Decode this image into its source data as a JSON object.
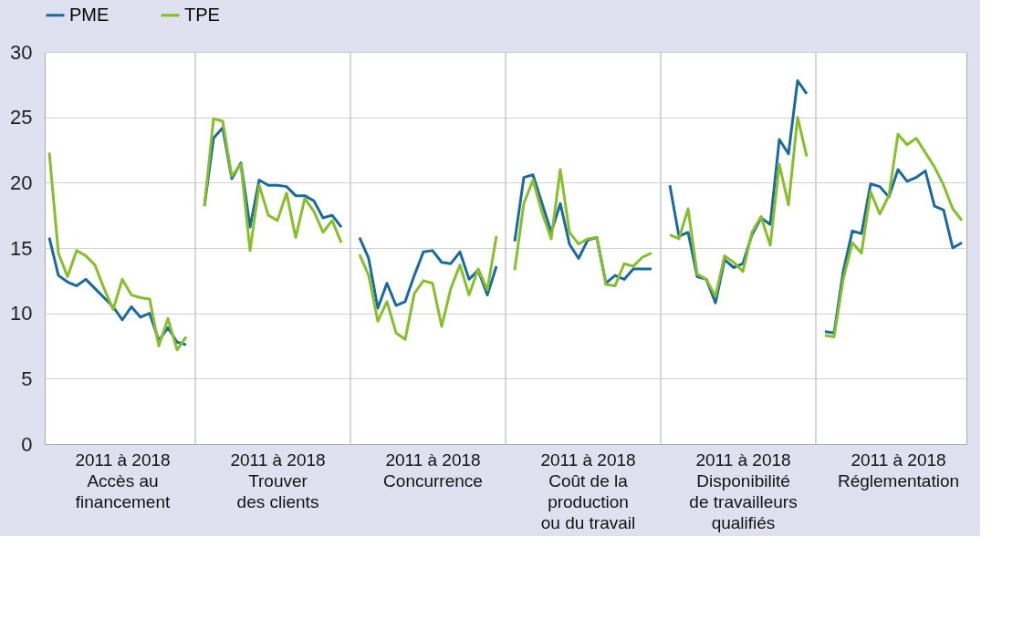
{
  "chart_data": {
    "type": "line",
    "categories": [
      null,
      null,
      null,
      null,
      null,
      null,
      null,
      null,
      "2011 à 2018\nAccès au\nfinancement",
      null,
      null,
      null,
      null,
      null,
      null,
      null,
      null,
      null,
      null,
      null,
      null,
      null,
      null,
      null,
      null,
      "2011 à 2018\nTrouver\ndes clients",
      null,
      null,
      null,
      null,
      null,
      null,
      null,
      null,
      null,
      null,
      null,
      null,
      null,
      null,
      null,
      null,
      "2011 à 2018\nConcurrence",
      null,
      null,
      null,
      null,
      null,
      null,
      null,
      null,
      null,
      null,
      null,
      null,
      null,
      null,
      null,
      null,
      "2011 à 2018\nCoût de la\nproduction\nou du travail",
      null,
      null,
      null,
      null,
      null,
      null,
      null,
      null,
      null,
      null,
      null,
      null,
      null,
      null,
      null,
      null,
      "2011 à 2018\nDisponibilité\nde travailleurs\nqualifiés",
      null,
      null,
      null,
      null,
      null,
      null,
      null,
      null,
      null,
      null,
      null,
      null,
      null,
      null,
      null,
      null,
      "2011 à 2018\nRéglementation",
      null,
      null,
      null,
      null,
      null,
      null,
      null
    ],
    "ylim": [
      0,
      30
    ],
    "yticks": [
      0,
      5,
      10,
      15,
      20,
      25,
      30
    ],
    "grid": true,
    "legend": "top left",
    "series": [
      {
        "name": "PME",
        "color": "#1a6a9e",
        "values": [
          15.8,
          12.9,
          12.4,
          12.1,
          12.6,
          11.9,
          11.2,
          10.5,
          9.5,
          10.5,
          9.7,
          10.0,
          7.9,
          8.9,
          7.8,
          7.6,
          null,
          18.2,
          23.4,
          24.2,
          20.3,
          21.5,
          16.6,
          20.2,
          19.8,
          19.8,
          19.7,
          19.0,
          19.0,
          18.6,
          17.3,
          17.5,
          16.6,
          null,
          15.8,
          14.2,
          10.4,
          12.3,
          10.6,
          10.9,
          12.9,
          14.7,
          14.8,
          13.9,
          13.8,
          14.7,
          12.6,
          13.3,
          11.4,
          13.6,
          null,
          15.5,
          20.4,
          20.6,
          18.4,
          16.2,
          18.4,
          15.3,
          14.2,
          15.6,
          15.8,
          12.3,
          12.9,
          12.6,
          13.4,
          13.4,
          13.4,
          null,
          19.8,
          15.9,
          16.2,
          12.8,
          12.6,
          10.8,
          14.1,
          13.5,
          13.8,
          16.0,
          17.3,
          16.8,
          23.3,
          22.2,
          27.8,
          26.8,
          null,
          8.6,
          8.5,
          13.2,
          16.3,
          16.1,
          19.9,
          19.7,
          18.9,
          21.0,
          20.1,
          20.4,
          20.9,
          18.2,
          17.9,
          15.0,
          15.4
        ]
      },
      {
        "name": "TPE",
        "color": "#86bf2a",
        "values": [
          22.3,
          14.6,
          12.8,
          14.8,
          14.4,
          13.7,
          11.9,
          10.3,
          12.6,
          11.4,
          11.2,
          11.1,
          7.5,
          9.6,
          7.2,
          8.2,
          null,
          18.2,
          24.9,
          24.7,
          20.5,
          21.4,
          14.8,
          19.8,
          17.5,
          17.1,
          19.2,
          15.8,
          18.8,
          17.8,
          16.2,
          17.1,
          15.4,
          null,
          14.5,
          12.9,
          9.4,
          10.9,
          8.5,
          8.0,
          11.5,
          12.5,
          12.3,
          9.0,
          11.9,
          13.7,
          11.4,
          13.4,
          11.8,
          15.9,
          null,
          13.3,
          18.4,
          20.2,
          17.7,
          15.7,
          21.0,
          16.2,
          15.3,
          15.7,
          15.8,
          12.2,
          12.1,
          13.8,
          13.6,
          14.3,
          14.6,
          null,
          16.0,
          15.7,
          18.0,
          13.0,
          12.6,
          11.3,
          14.4,
          13.9,
          13.2,
          16.2,
          17.4,
          15.2,
          21.4,
          18.3,
          25.0,
          22.0,
          null,
          8.3,
          8.2,
          12.6,
          15.4,
          14.6,
          19.3,
          17.6,
          19.0,
          23.7,
          22.9,
          23.4,
          22.3,
          21.2,
          19.8,
          18.0,
          17.1
        ]
      }
    ]
  }
}
